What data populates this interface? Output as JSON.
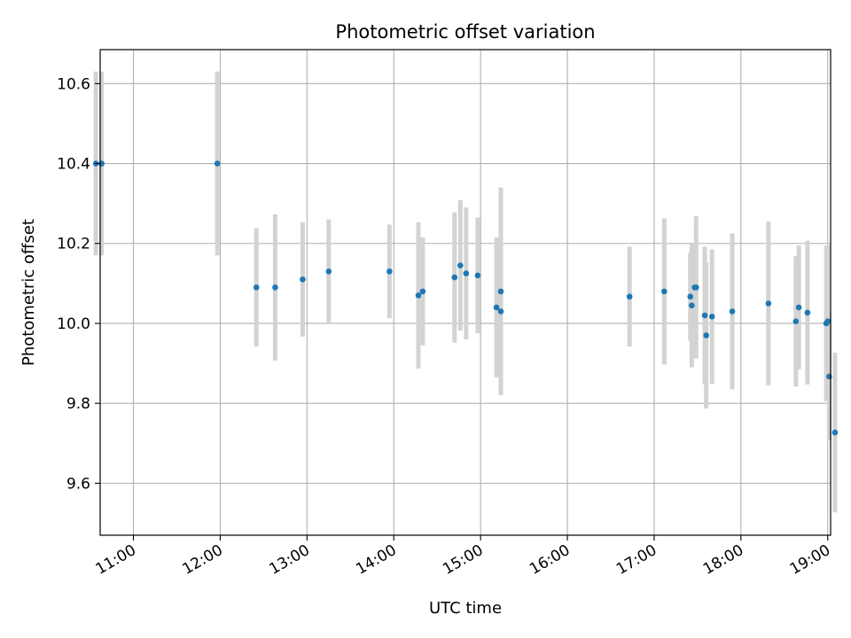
{
  "chart_data": {
    "type": "scatter",
    "title": "Photometric offset variation",
    "xlabel": "UTC time",
    "ylabel": "Photometric offset",
    "xlim": [
      "10:37",
      "19:02"
    ],
    "ylim": [
      9.47,
      10.685
    ],
    "grid": true,
    "legend": "none",
    "x_ticks": [
      "11:00",
      "12:00",
      "13:00",
      "14:00",
      "15:00",
      "16:00",
      "17:00",
      "18:00",
      "19:00"
    ],
    "y_ticks": [
      9.6,
      9.8,
      10.0,
      10.2,
      10.4,
      10.6
    ],
    "series": [
      {
        "marker_color": "#1f77b4",
        "errorbar_color": "#d3d3d3",
        "points": [
          {
            "t": "10:34",
            "y": 10.4,
            "err": 0.23
          },
          {
            "t": "10:38",
            "y": 10.4,
            "err": 0.23
          },
          {
            "t": "11:58",
            "y": 10.4,
            "err": 0.23
          },
          {
            "t": "12:25",
            "y": 10.09,
            "err": 0.148
          },
          {
            "t": "12:38",
            "y": 10.09,
            "err": 0.183
          },
          {
            "t": "12:57",
            "y": 10.11,
            "err": 0.143
          },
          {
            "t": "13:15",
            "y": 10.13,
            "err": 0.13
          },
          {
            "t": "13:57",
            "y": 10.13,
            "err": 0.117
          },
          {
            "t": "14:17",
            "y": 10.07,
            "err": 0.183
          },
          {
            "t": "14:20",
            "y": 10.08,
            "err": 0.135
          },
          {
            "t": "14:42",
            "y": 10.115,
            "err": 0.163
          },
          {
            "t": "14:46",
            "y": 10.145,
            "err": 0.163
          },
          {
            "t": "14:50",
            "y": 10.125,
            "err": 0.165
          },
          {
            "t": "14:58",
            "y": 10.12,
            "err": 0.145
          },
          {
            "t": "15:11",
            "y": 10.04,
            "err": 0.175
          },
          {
            "t": "15:14",
            "y": 10.08,
            "err": 0.26
          },
          {
            "t": "15:14",
            "y": 10.03,
            "err": 0.09
          },
          {
            "t": "16:43",
            "y": 10.067,
            "err": 0.125
          },
          {
            "t": "17:07",
            "y": 10.08,
            "err": 0.183
          },
          {
            "t": "17:25",
            "y": 10.067,
            "err": 0.11
          },
          {
            "t": "17:26",
            "y": 10.045,
            "err": 0.155
          },
          {
            "t": "17:28",
            "y": 10.09,
            "err": 0.108
          },
          {
            "t": "17:29",
            "y": 10.09,
            "err": 0.178
          },
          {
            "t": "17:35",
            "y": 10.02,
            "err": 0.172
          },
          {
            "t": "17:36",
            "y": 9.97,
            "err": 0.183
          },
          {
            "t": "17:40",
            "y": 10.017,
            "err": 0.168
          },
          {
            "t": "17:54",
            "y": 10.03,
            "err": 0.195
          },
          {
            "t": "18:19",
            "y": 10.05,
            "err": 0.205
          },
          {
            "t": "18:38",
            "y": 10.005,
            "err": 0.163
          },
          {
            "t": "18:40",
            "y": 10.04,
            "err": 0.155
          },
          {
            "t": "18:46",
            "y": 10.027,
            "err": 0.18
          },
          {
            "t": "18:59",
            "y": 10.0,
            "err": 0.195
          },
          {
            "t": "19:00",
            "y": 10.005,
            "err": 0.19
          },
          {
            "t": "19:01",
            "y": 9.867,
            "err": 0.16
          },
          {
            "t": "19:05",
            "y": 9.727,
            "err": 0.2
          }
        ]
      }
    ]
  }
}
